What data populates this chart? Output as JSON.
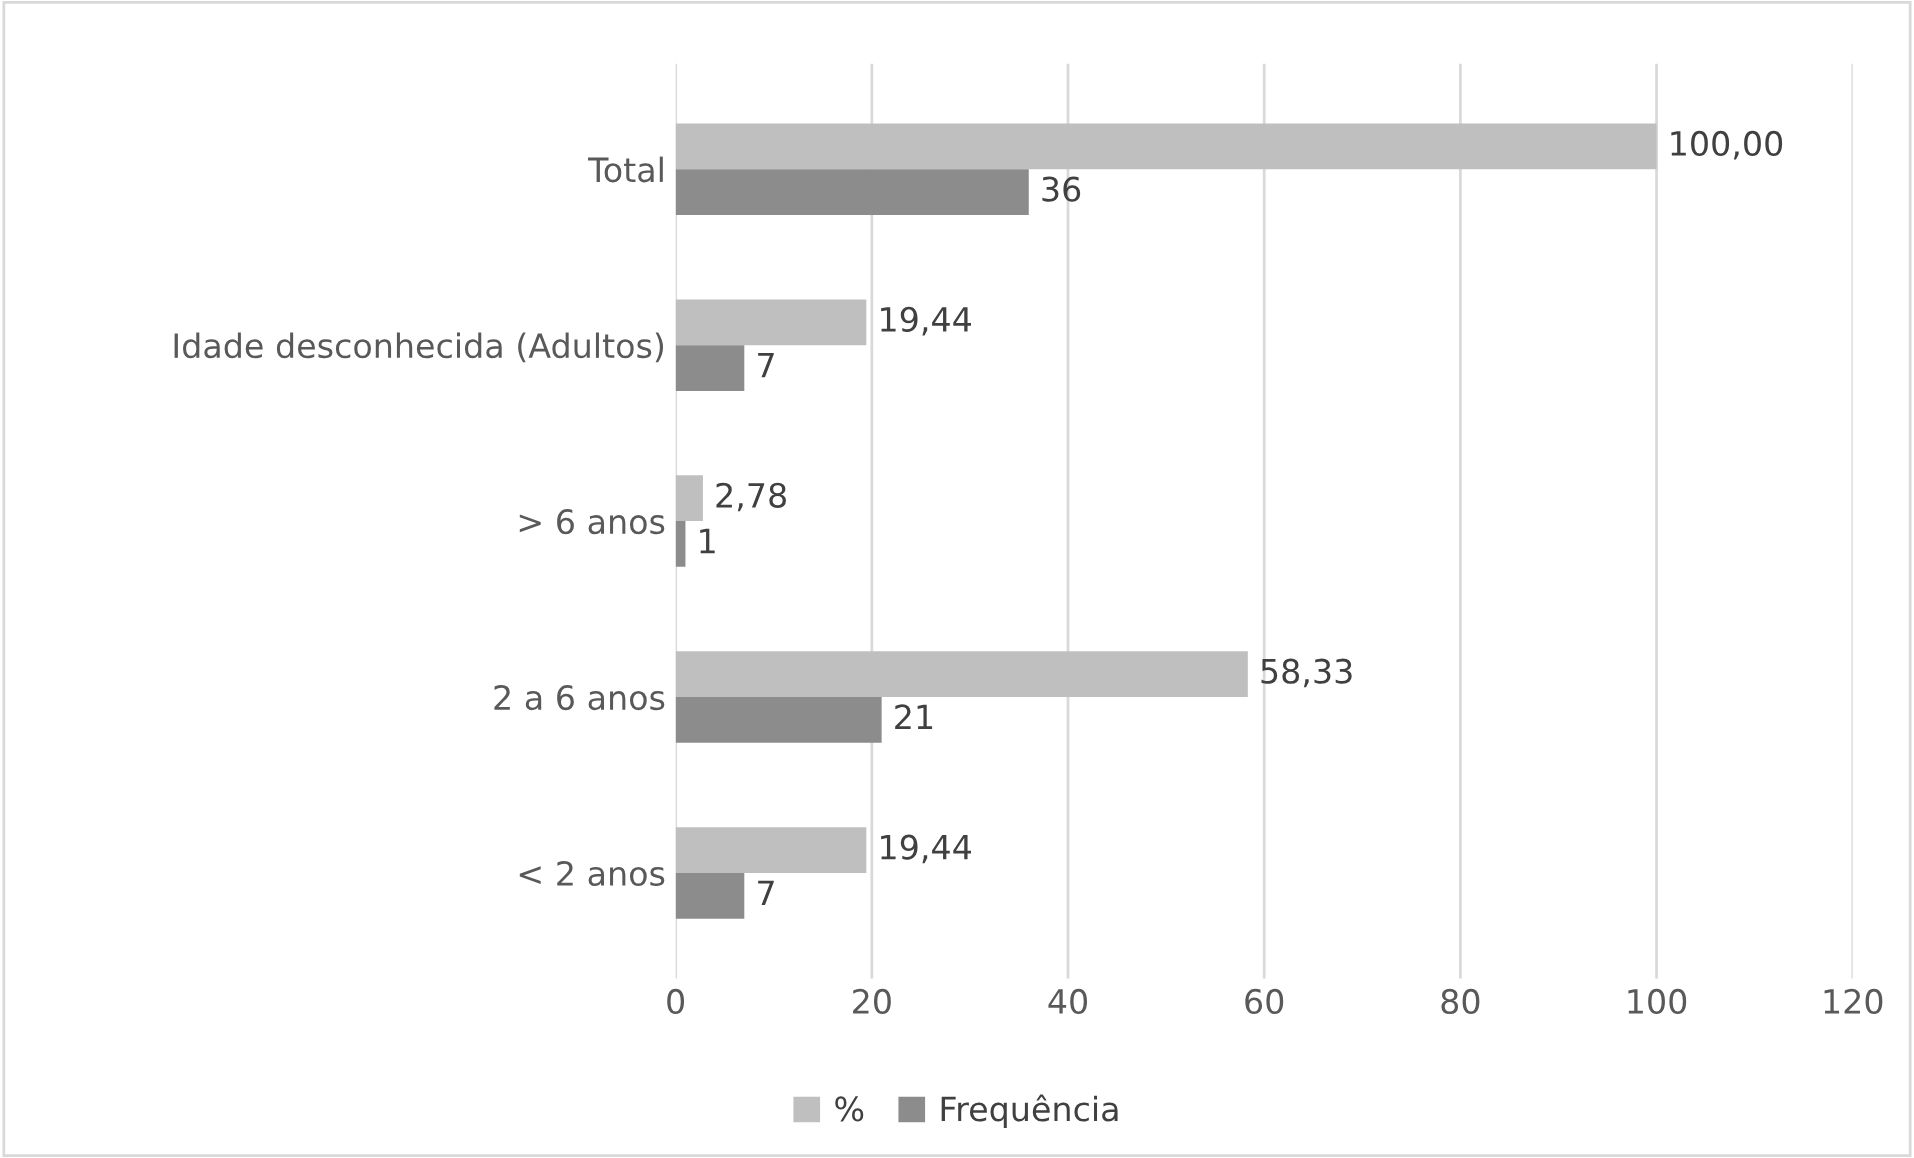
{
  "chart_data": {
    "type": "bar",
    "orientation": "horizontal",
    "categories": [
      "Total",
      "Idade desconhecida (Adultos)",
      "> 6 anos",
      "2 a 6 anos",
      "< 2 anos"
    ],
    "series": [
      {
        "name": "%",
        "color": "#bfbfbf",
        "values": [
          100.0,
          19.44,
          2.78,
          58.33,
          19.44
        ],
        "value_labels": [
          "100,00",
          "19,44",
          "2,78",
          "58,33",
          "19,44"
        ]
      },
      {
        "name": "Frequência",
        "color": "#8c8c8c",
        "values": [
          36,
          7,
          1,
          21,
          7
        ],
        "value_labels": [
          "36",
          "7",
          "1",
          "21",
          "7"
        ]
      }
    ],
    "xlim": [
      0,
      120
    ],
    "xticks": [
      0,
      20,
      40,
      60,
      80,
      100,
      120
    ],
    "grid": "x",
    "legend": "bottom"
  }
}
